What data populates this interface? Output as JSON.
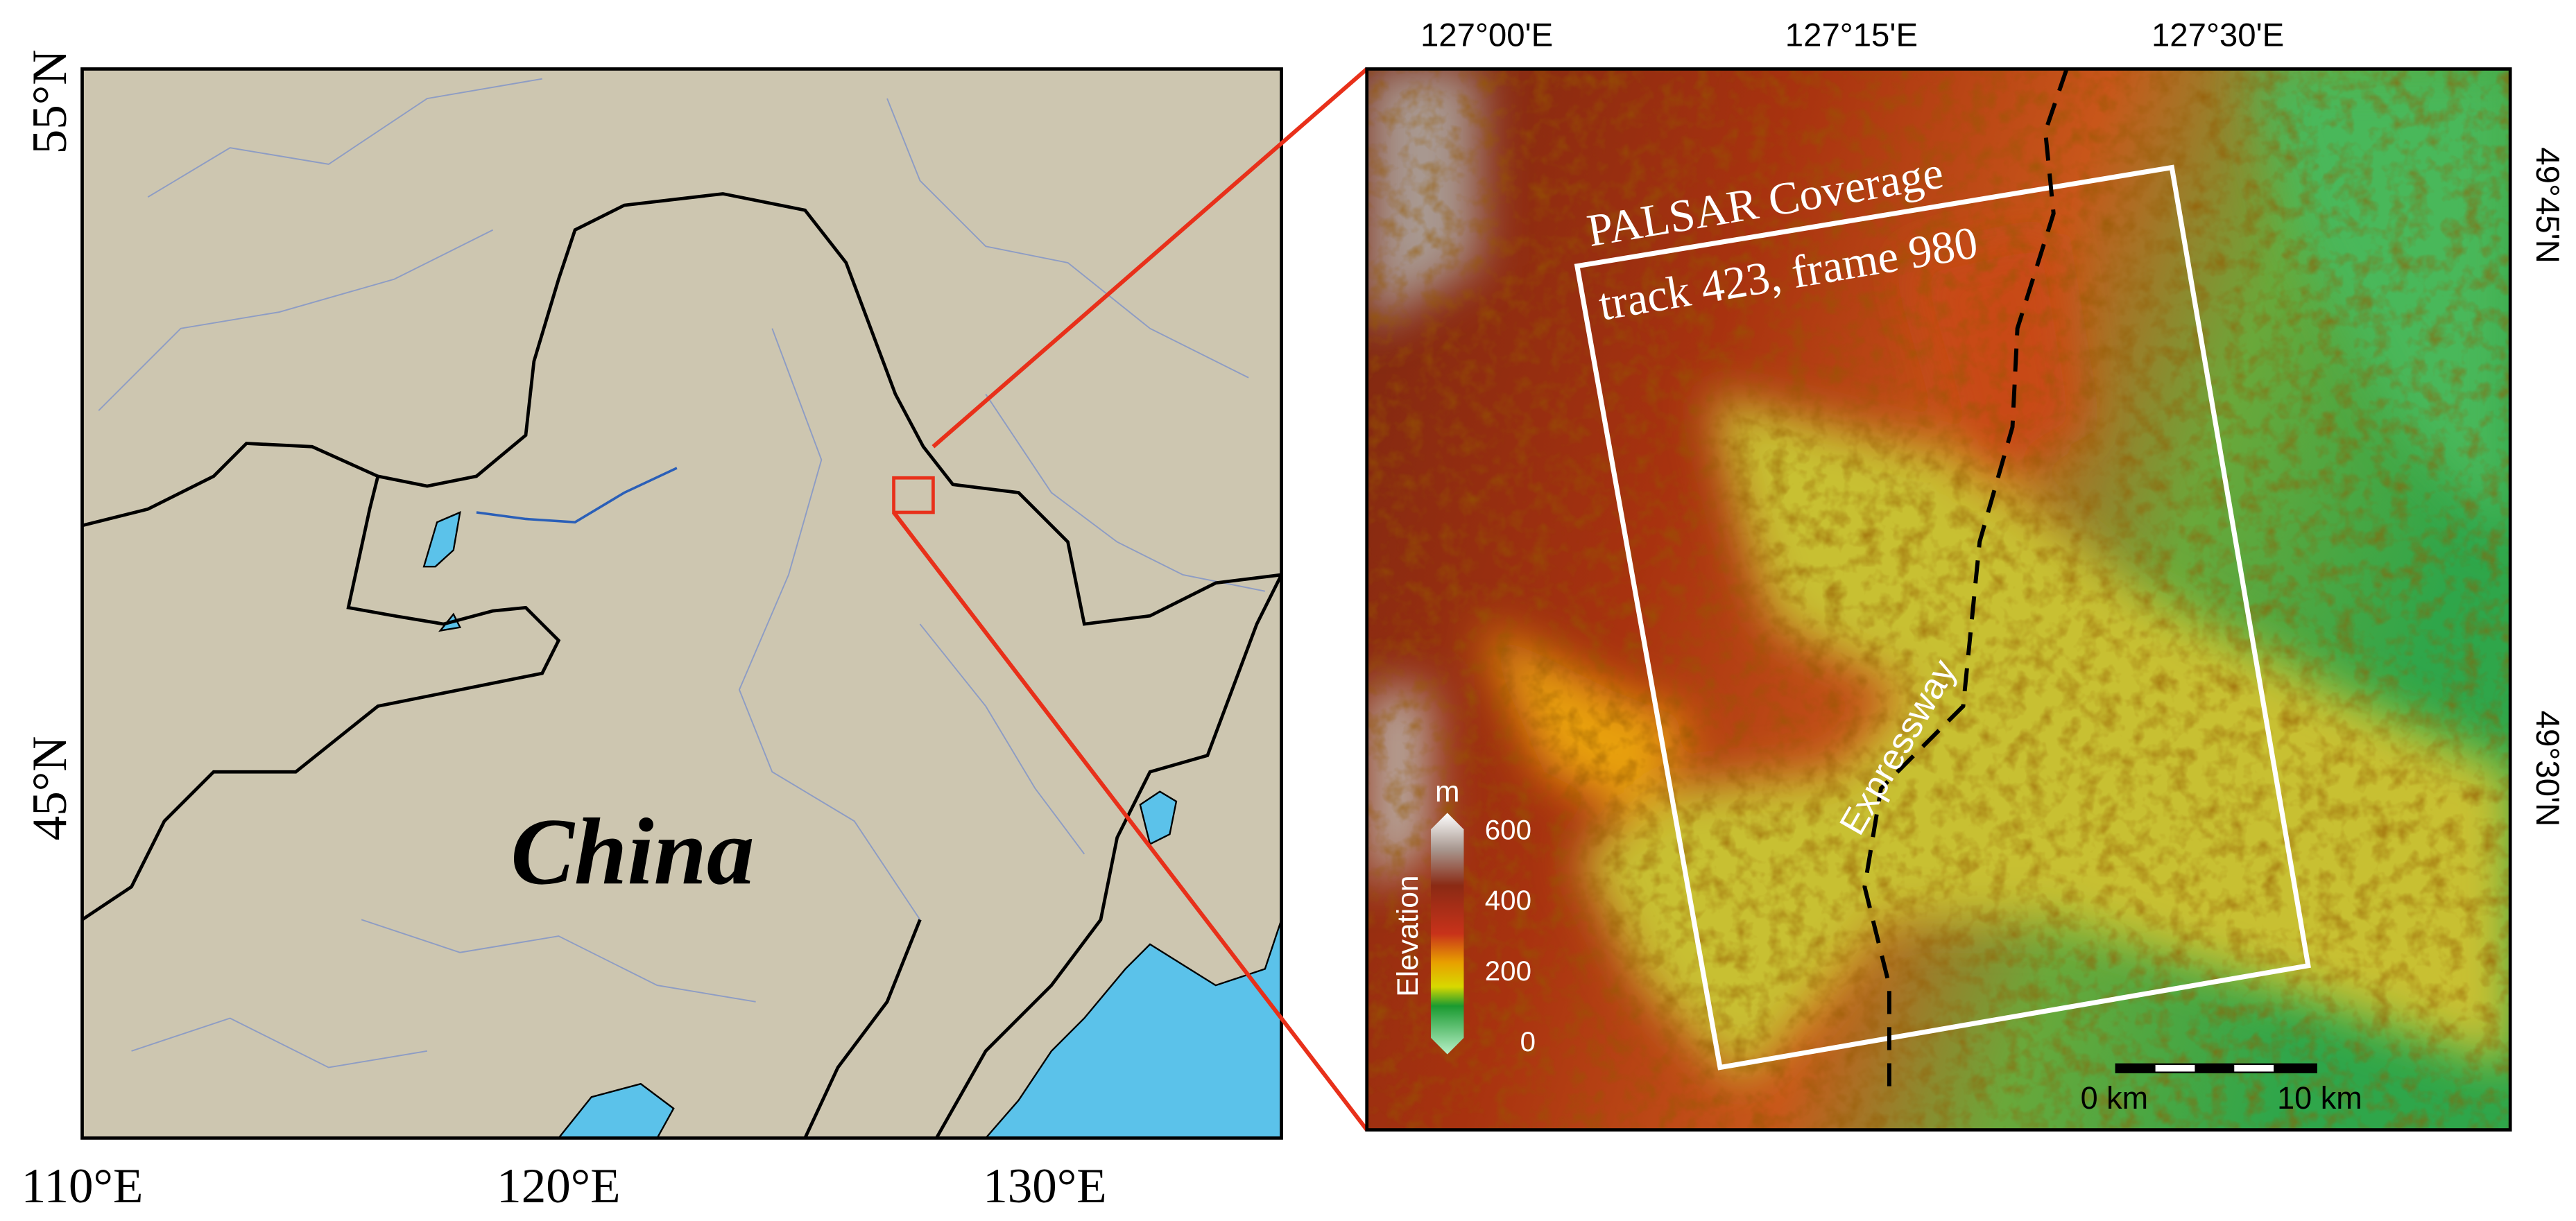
{
  "left_map": {
    "lat_labels": [
      "55°N",
      "45°N"
    ],
    "lon_labels": [
      "110°E",
      "120°E",
      "130°E"
    ],
    "country_label": "China"
  },
  "right_map": {
    "lon_labels": [
      "127°00'E",
      "127°15'E",
      "127°30'E"
    ],
    "lat_labels": [
      "49°45'N",
      "49°30'N"
    ],
    "coverage_label": [
      "PALSAR Coverage",
      "track 423, frame 980"
    ],
    "road_label": "Expressway",
    "legend": {
      "title": "Elevation",
      "unit": "m",
      "ticks": [
        600,
        400,
        200,
        0
      ]
    },
    "scale_bar": [
      "0 km",
      "10 km"
    ]
  }
}
